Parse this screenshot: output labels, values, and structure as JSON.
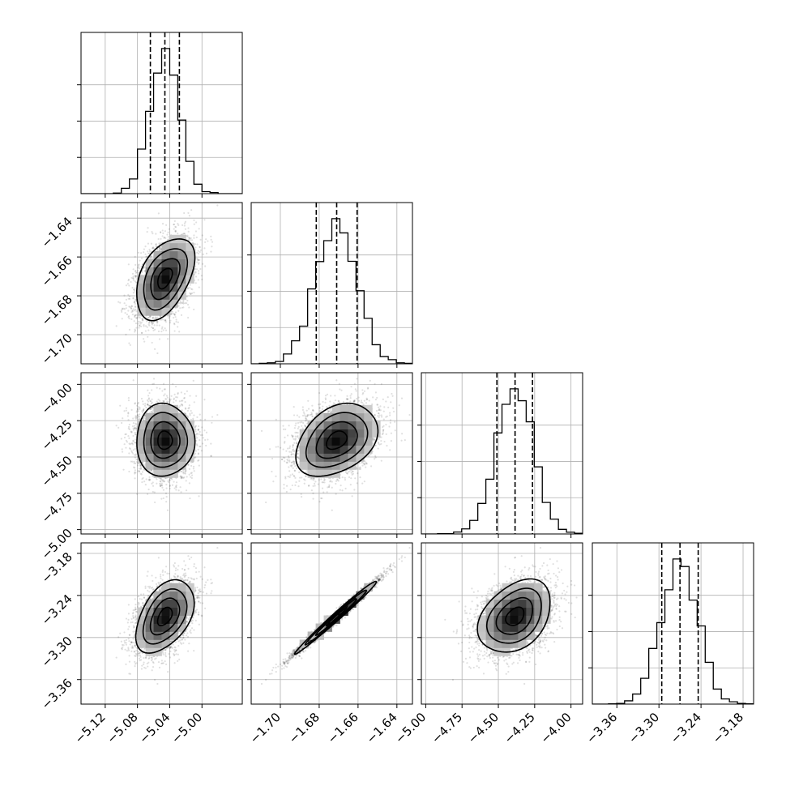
{
  "chart_data": {
    "type": "corner",
    "variables": [
      {
        "range": [
          -5.15,
          -4.95
        ],
        "ticks": [
          -5.12,
          -5.08,
          -5.04,
          -5.0
        ],
        "tick_labels": [
          "−5.12",
          "−5.08",
          "−5.04",
          "−5.00"
        ],
        "quantiles": [
          -5.064,
          -5.046,
          -5.028
        ]
      },
      {
        "range": [
          -1.715,
          -1.632
        ],
        "ticks": [
          -1.7,
          -1.68,
          -1.66,
          -1.64
        ],
        "tick_labels": [
          "−1.70",
          "−1.68",
          "−1.66",
          "−1.64"
        ],
        "quantiles": [
          -1.6815,
          -1.671,
          -1.6605
        ]
      },
      {
        "range": [
          -5.03,
          -3.92
        ],
        "ticks": [
          -5.0,
          -4.75,
          -4.5,
          -4.25,
          -4.0
        ],
        "tick_labels": [
          "−5.00",
          "−4.75",
          "−4.50",
          "−4.25",
          "−4.00"
        ],
        "quantiles": [
          -4.51,
          -4.385,
          -4.265
        ]
      },
      {
        "range": [
          -3.395,
          -3.165
        ],
        "ticks": [
          -3.36,
          -3.3,
          -3.24,
          -3.18
        ],
        "tick_labels": [
          "−3.36",
          "−3.30",
          "−3.24",
          "−3.18"
        ],
        "quantiles": [
          -3.296,
          -3.27,
          -3.244
        ]
      }
    ],
    "means": [
      -5.046,
      -1.671,
      -4.385,
      -3.27
    ],
    "sigmas": [
      0.018,
      0.0105,
      0.125,
      0.026
    ],
    "correlations": [
      [
        1.0,
        0.45,
        0.0,
        0.45
      ],
      [
        0.45,
        1.0,
        0.35,
        0.99
      ],
      [
        0.0,
        0.35,
        1.0,
        0.35
      ],
      [
        0.45,
        0.99,
        0.35,
        1.0
      ]
    ],
    "histogram_bins": 20,
    "contour_levels_sigma": [
      0.5,
      1.0,
      1.5,
      2.0
    ],
    "grid": true
  }
}
